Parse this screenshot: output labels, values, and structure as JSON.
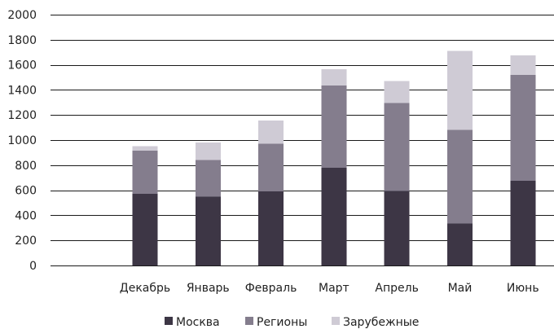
{
  "chart_data": {
    "type": "bar",
    "stacked": true,
    "title": "",
    "xlabel": "",
    "ylabel": "",
    "ylim": [
      0,
      2000
    ],
    "yticks": [
      0,
      200,
      400,
      600,
      800,
      1000,
      1200,
      1400,
      1600,
      1800,
      2000
    ],
    "grid": true,
    "legend_position": "bottom",
    "categories": [
      "",
      "Декабрь",
      "Январь",
      "Февраль",
      "Март",
      "Апрель",
      "Май",
      "Июнь"
    ],
    "series": [
      {
        "name": "Москва",
        "color": "#3d3645",
        "values": [
          null,
          570,
          550,
          590,
          780,
          595,
          335,
          675
        ]
      },
      {
        "name": "Регионы",
        "color": "#847d8d",
        "values": [
          null,
          345,
          290,
          380,
          655,
          700,
          745,
          845
        ]
      },
      {
        "name": "Зарубежные",
        "color": "#cfcbd5",
        "values": [
          null,
          35,
          140,
          185,
          130,
          175,
          630,
          155
        ]
      }
    ]
  }
}
